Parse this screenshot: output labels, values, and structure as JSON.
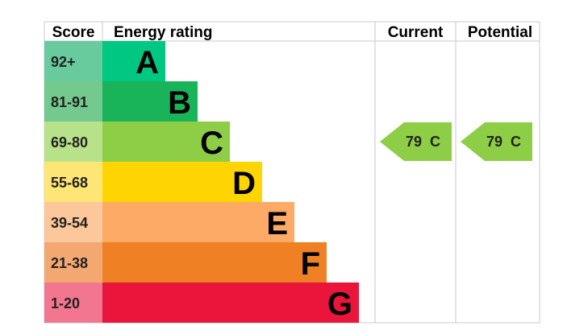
{
  "chart_data": {
    "type": "table",
    "headers": {
      "score": "Score",
      "rating": "Energy rating",
      "current": "Current",
      "potential": "Potential"
    },
    "bands": [
      {
        "score": "92+",
        "letter": "A",
        "color": "#00c781",
        "score_bg": "#67cb9e"
      },
      {
        "score": "81-91",
        "letter": "B",
        "color": "#19b459",
        "score_bg": "#74c98e"
      },
      {
        "score": "69-80",
        "letter": "C",
        "color": "#8dce46",
        "score_bg": "#b8e28a"
      },
      {
        "score": "55-68",
        "letter": "D",
        "color": "#ffd500",
        "score_bg": "#fde675"
      },
      {
        "score": "39-54",
        "letter": "E",
        "color": "#fcaa65",
        "score_bg": "#fcc79a"
      },
      {
        "score": "21-38",
        "letter": "F",
        "color": "#ef8023",
        "score_bg": "#f4a871"
      },
      {
        "score": "1-20",
        "letter": "G",
        "color": "#e9153b",
        "score_bg": "#f27690"
      }
    ],
    "current": {
      "value": 79,
      "band": "C",
      "label": "79  C",
      "color": "#8dce46"
    },
    "potential": {
      "value": 79,
      "band": "C",
      "label": "79  C",
      "color": "#8dce46"
    }
  }
}
